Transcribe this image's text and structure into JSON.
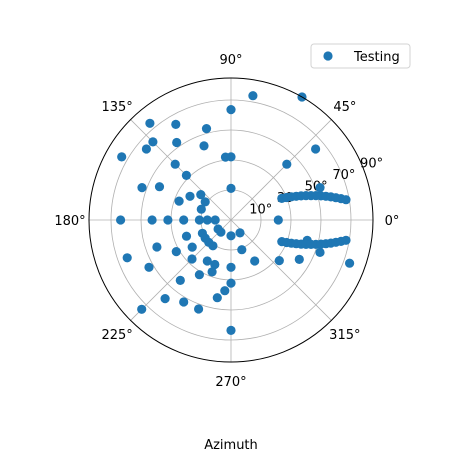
{
  "chart_data": {
    "type": "scatter",
    "projection": "polar",
    "xlabel": "Azimuth",
    "legend": {
      "entries": [
        "Testing"
      ],
      "placement": "top-right"
    },
    "color": "#1f77b4",
    "grid": true,
    "theta_ticks": [
      "0°",
      "45°",
      "90°",
      "135°",
      "180°",
      "225°",
      "270°",
      "315°"
    ],
    "radial_ticks": [
      "10°",
      "30°",
      "50°",
      "70°",
      "90°"
    ],
    "radial_values": [
      10,
      30,
      50,
      70,
      90
    ],
    "radial_label_angle_deg": 22.5,
    "radial_direction": "inverted",
    "r_range": [
      90,
      0
    ],
    "series": [
      {
        "name": "Testing",
        "points": [
          {
            "az": 60,
            "el": 0
          },
          {
            "az": 80,
            "el": 10
          },
          {
            "az": 90,
            "el": 20
          },
          {
            "az": 40,
            "el": 20
          },
          {
            "az": 120,
            "el": 20
          },
          {
            "az": 0,
            "el": 60
          },
          {
            "az": 90,
            "el": 50
          },
          {
            "az": 90,
            "el": 70
          },
          {
            "az": 95,
            "el": 50
          },
          {
            "az": 110,
            "el": 40
          },
          {
            "az": 135,
            "el": 40
          },
          {
            "az": 135,
            "el": 50
          },
          {
            "az": 125,
            "el": 30
          },
          {
            "az": 105,
            "el": 30
          },
          {
            "az": 45,
            "el": 40
          },
          {
            "az": 135,
            "el": 20
          },
          {
            "az": 130,
            "el": 10
          },
          {
            "az": 155,
            "el": 40
          },
          {
            "az": 160,
            "el": 30
          },
          {
            "az": 140,
            "el": 20
          },
          {
            "az": 150,
            "el": 10
          },
          {
            "az": 180,
            "el": 20
          },
          {
            "az": 180,
            "el": 40
          },
          {
            "az": 180,
            "el": 50
          },
          {
            "az": 180,
            "el": 60
          },
          {
            "az": 180,
            "el": 70
          },
          {
            "az": 150,
            "el": 60
          },
          {
            "az": 145,
            "el": 70
          },
          {
            "az": 140,
            "el": 65
          },
          {
            "az": 160,
            "el": 55
          },
          {
            "az": 160,
            "el": 70
          },
          {
            "az": 180,
            "el": 80
          },
          {
            "az": 180,
            "el": 75
          },
          {
            "az": 210,
            "el": 30
          },
          {
            "az": 200,
            "el": 40
          },
          {
            "az": 210,
            "el": 50
          },
          {
            "az": 200,
            "el": 60
          },
          {
            "az": 205,
            "el": 70
          },
          {
            "az": 215,
            "el": 60
          },
          {
            "az": 225,
            "el": 55
          },
          {
            "az": 225,
            "el": 70
          },
          {
            "az": 215,
            "el": 70
          },
          {
            "az": 230,
            "el": 40
          },
          {
            "az": 240,
            "el": 50
          },
          {
            "az": 240,
            "el": 30
          },
          {
            "az": 200,
            "el": 20
          },
          {
            "az": 240,
            "el": 60
          },
          {
            "az": 230,
            "el": 25
          },
          {
            "az": 250,
            "el": 30
          },
          {
            "az": 260,
            "el": 40
          },
          {
            "az": 270,
            "el": 60
          },
          {
            "az": 270,
            "el": 80
          },
          {
            "az": 270,
            "el": 50
          },
          {
            "az": 270,
            "el": 20
          },
          {
            "az": 300,
            "el": 60
          },
          {
            "az": 290,
            "el": 70
          },
          {
            "az": 230,
            "el": 80
          },
          {
            "az": 215,
            "el": 80
          },
          {
            "az": 235,
            "el": 70
          },
          {
            "az": 250,
            "el": 55
          },
          {
            "az": 250,
            "el": 60
          },
          {
            "az": 265,
            "el": 45
          },
          {
            "az": 340,
            "el": 10
          },
          {
            "az": 340,
            "el": 30
          },
          {
            "az": 345,
            "el": 40
          },
          {
            "az": 330,
            "el": 40
          },
          {
            "az": 320,
            "el": 50
          },
          {
            "az": 305,
            "el": 80
          },
          {
            "az": 225,
            "el": 10
          },
          {
            "az": 23,
            "el": 55
          },
          {
            "az": 22,
            "el": 52
          },
          {
            "az": 21,
            "el": 49
          },
          {
            "az": 20,
            "el": 46
          },
          {
            "az": 19,
            "el": 43
          },
          {
            "az": 18,
            "el": 40
          },
          {
            "az": 17,
            "el": 37
          },
          {
            "az": 16,
            "el": 34
          },
          {
            "az": 15,
            "el": 31
          },
          {
            "az": 14,
            "el": 28
          },
          {
            "az": 13,
            "el": 25
          },
          {
            "az": 12,
            "el": 22
          },
          {
            "az": 11,
            "el": 19
          },
          {
            "az": 10,
            "el": 16
          },
          {
            "az": 20,
            "el": 30
          },
          {
            "az": 337,
            "el": 55
          },
          {
            "az": 338,
            "el": 52
          },
          {
            "az": 339,
            "el": 49
          },
          {
            "az": 340,
            "el": 46
          },
          {
            "az": 341,
            "el": 43
          },
          {
            "az": 342,
            "el": 40
          },
          {
            "az": 343,
            "el": 37
          },
          {
            "az": 344,
            "el": 34
          },
          {
            "az": 345,
            "el": 31
          },
          {
            "az": 346,
            "el": 28
          },
          {
            "az": 347,
            "el": 25
          },
          {
            "az": 348,
            "el": 22
          },
          {
            "az": 349,
            "el": 19
          },
          {
            "az": 350,
            "el": 16
          }
        ]
      }
    ]
  }
}
